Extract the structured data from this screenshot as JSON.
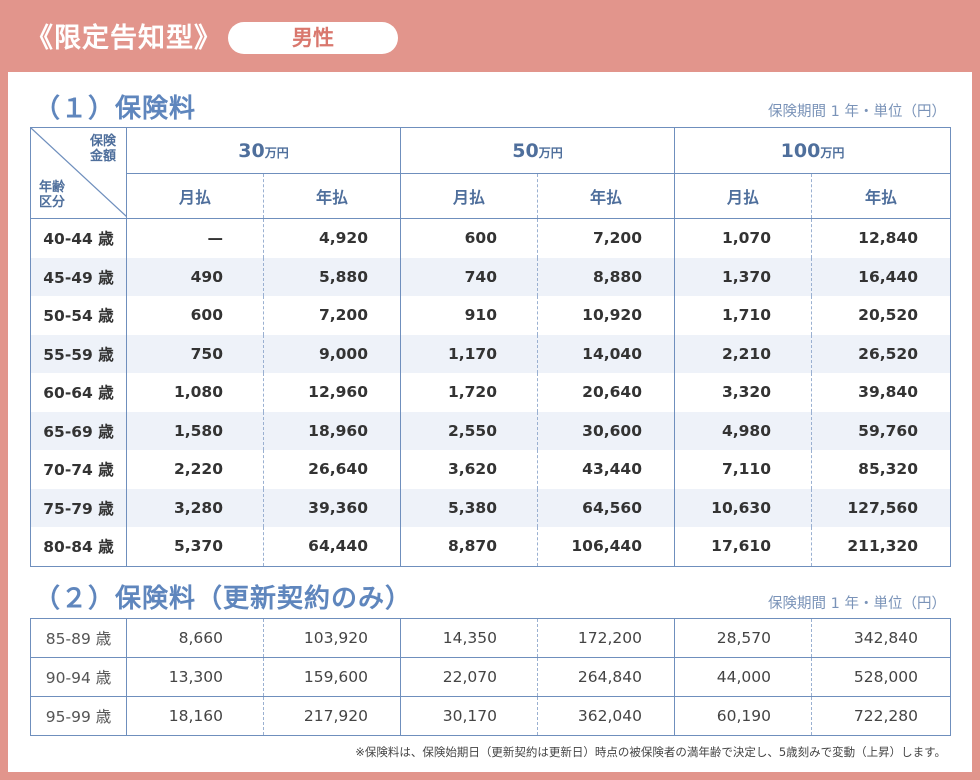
{
  "header": {
    "title": "《限定告知型》",
    "gender_label": "男性"
  },
  "section1": {
    "title": "（１）保険料",
    "unit": "保険期間 1 年・単位（円）"
  },
  "section2": {
    "title": "（２）保険料（更新契約のみ）",
    "unit": "保険期間 1 年・単位（円）"
  },
  "table_header": {
    "diag_top": [
      "保険",
      "金額"
    ],
    "diag_bottom": [
      "年齢",
      "区分"
    ],
    "amounts": [
      {
        "value": "30",
        "suffix": "万円"
      },
      {
        "value": "50",
        "suffix": "万円"
      },
      {
        "value": "100",
        "suffix": "万円"
      }
    ],
    "monthly": "月払",
    "annual": "年払"
  },
  "rows1": [
    {
      "age": "40-44 歳",
      "v": [
        "—",
        "4,920",
        "600",
        "7,200",
        "1,070",
        "12,840"
      ]
    },
    {
      "age": "45-49 歳",
      "v": [
        "490",
        "5,880",
        "740",
        "8,880",
        "1,370",
        "16,440"
      ]
    },
    {
      "age": "50-54 歳",
      "v": [
        "600",
        "7,200",
        "910",
        "10,920",
        "1,710",
        "20,520"
      ]
    },
    {
      "age": "55-59 歳",
      "v": [
        "750",
        "9,000",
        "1,170",
        "14,040",
        "2,210",
        "26,520"
      ]
    },
    {
      "age": "60-64 歳",
      "v": [
        "1,080",
        "12,960",
        "1,720",
        "20,640",
        "3,320",
        "39,840"
      ]
    },
    {
      "age": "65-69 歳",
      "v": [
        "1,580",
        "18,960",
        "2,550",
        "30,600",
        "4,980",
        "59,760"
      ]
    },
    {
      "age": "70-74 歳",
      "v": [
        "2,220",
        "26,640",
        "3,620",
        "43,440",
        "7,110",
        "85,320"
      ]
    },
    {
      "age": "75-79 歳",
      "v": [
        "3,280",
        "39,360",
        "5,380",
        "64,560",
        "10,630",
        "127,560"
      ]
    },
    {
      "age": "80-84 歳",
      "v": [
        "5,370",
        "64,440",
        "8,870",
        "106,440",
        "17,610",
        "211,320"
      ]
    }
  ],
  "rows2": [
    {
      "age": "85-89 歳",
      "v": [
        "8,660",
        "103,920",
        "14,350",
        "172,200",
        "28,570",
        "342,840"
      ]
    },
    {
      "age": "90-94 歳",
      "v": [
        "13,300",
        "159,600",
        "22,070",
        "264,840",
        "44,000",
        "528,000"
      ]
    },
    {
      "age": "95-99 歳",
      "v": [
        "18,160",
        "217,920",
        "30,170",
        "362,040",
        "60,190",
        "722,280"
      ]
    }
  ],
  "footnote": "※保険料は、保険始期日（更新契約は更新日）時点の被保険者の満年齢で決定し、5歳刻みで変動（上昇）します。"
}
